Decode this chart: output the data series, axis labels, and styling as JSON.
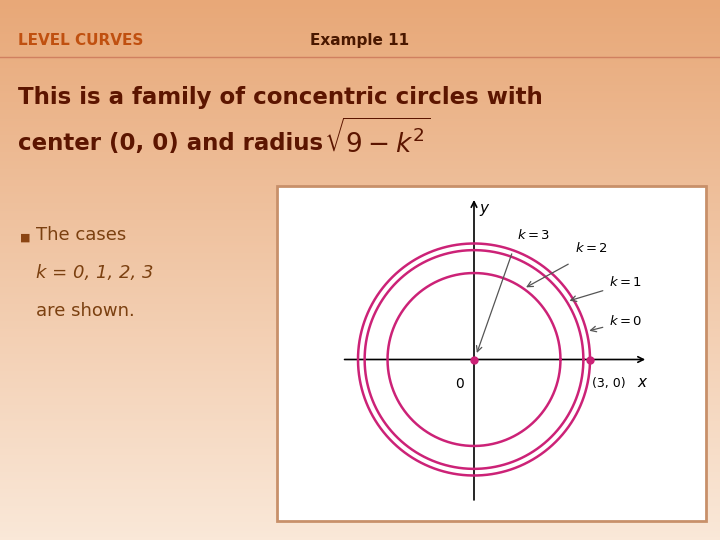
{
  "title_left": "LEVEL CURVES",
  "title_right": "Example 11",
  "title_left_color": "#C05010",
  "title_right_color": "#4A1800",
  "bg_color_top": "#FAE8D8",
  "bg_color_bottom": "#E8B898",
  "header_line_color": "#D08060",
  "main_text_line1": "This is a family of concentric circles with",
  "main_text_line2": "center (0, 0) and radius ",
  "main_text_color": "#5C1500",
  "bullet_text_line1": "The cases",
  "bullet_text_line2": "k = 0, 1, 2, 3",
  "bullet_text_line3": "are shown.",
  "bullet_text_color": "#7B4010",
  "circle_color": "#CC2277",
  "circle_bg": "#FFFFFF",
  "circle_border": "#C8906A",
  "k_labels": [
    "k = 0",
    "k = 1",
    "k = 2",
    "k = 3"
  ],
  "dot_color": "#CC2277",
  "axis_color": "#333333"
}
